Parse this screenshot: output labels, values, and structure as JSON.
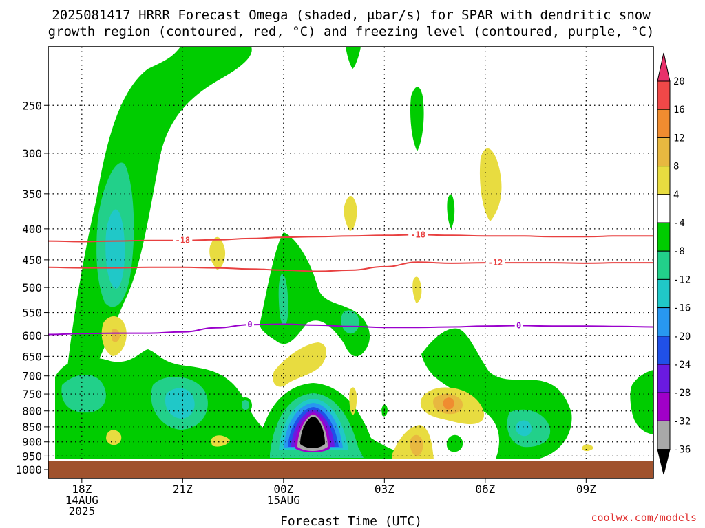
{
  "title_line1": "2025081417 HRRR Forecast Omega (shaded, μbar/s) for SPAR with dendritic snow",
  "title_line2": "growth region (contoured, red, °C) and freezing level (contoured, purple, °C)",
  "xlabel": "Forecast Time (UTC)",
  "credit": "coolwx.com/models",
  "colors": {
    "dendritic": "#e84040",
    "freezing": "#9a00cc",
    "ground": "#a0522d"
  },
  "chart_data": {
    "type": "heatmap",
    "title": "2025081417 HRRR Forecast Omega (shaded, μbar/s) for SPAR with dendritic snow growth region (contoured, red, °C) and freezing level (contoured, purple, °C)",
    "xlabel": "Forecast Time (UTC)",
    "ylabel": "",
    "x_start_hours": 17,
    "xlim_hours": [
      17,
      35
    ],
    "ylim_hPa": [
      200,
      1000
    ],
    "x_ticks": [
      {
        "hour": 18,
        "lines": [
          "18Z",
          "14AUG",
          "2025"
        ]
      },
      {
        "hour": 21,
        "lines": [
          "21Z"
        ]
      },
      {
        "hour": 24,
        "lines": [
          "00Z",
          "15AUG"
        ]
      },
      {
        "hour": 27,
        "lines": [
          "03Z"
        ]
      },
      {
        "hour": 30,
        "lines": [
          "06Z"
        ]
      },
      {
        "hour": 33,
        "lines": [
          "09Z"
        ]
      }
    ],
    "y_ticks": [
      250,
      300,
      350,
      400,
      450,
      500,
      550,
      600,
      650,
      700,
      750,
      800,
      850,
      900,
      950,
      1000
    ],
    "colorbar": {
      "labels": [
        "20",
        "16",
        "12",
        "8",
        "4",
        "-4",
        "-8",
        "-12",
        "-16",
        "-20",
        "-24",
        "-28",
        "-32",
        "-36"
      ],
      "colors": [
        "#e8306a",
        "#f04848",
        "#f08c30",
        "#e8b840",
        "#e8dc40",
        "#ffffff",
        "#00cc00",
        "#22d08a",
        "#20c8c8",
        "#2898f0",
        "#2050e8",
        "#6a1ae0",
        "#a000c8",
        "#a8a8a8",
        "#000000"
      ]
    },
    "contours": [
      {
        "name": "-18",
        "kind": "dendritic",
        "x": [
          17,
          18,
          19,
          20,
          21,
          22,
          23,
          24,
          25,
          26,
          27,
          28,
          29,
          30,
          31,
          32,
          33,
          34,
          35
        ],
        "y_hPa": [
          419,
          420,
          419,
          418,
          418,
          417,
          415,
          413,
          412,
          411,
          410,
          409,
          410,
          411,
          411,
          412,
          412,
          411,
          411
        ]
      },
      {
        "name": "-12",
        "kind": "dendritic",
        "x": [
          17,
          18,
          19,
          20,
          21,
          22,
          23,
          24,
          25,
          26,
          27,
          28,
          29,
          30,
          31,
          32,
          33,
          34,
          35
        ],
        "y_hPa": [
          463,
          464,
          464,
          463,
          463,
          464,
          466,
          468,
          470,
          468,
          462,
          454,
          456,
          455,
          455,
          455,
          456,
          455,
          455
        ]
      },
      {
        "name": "0",
        "kind": "freezing",
        "x": [
          17,
          18,
          19,
          20,
          21,
          22,
          23,
          24,
          25,
          26,
          27,
          28,
          29,
          30,
          31,
          32,
          33,
          34,
          35
        ],
        "y_hPa": [
          598,
          596,
          595,
          595,
          592,
          583,
          576,
          575,
          577,
          580,
          582,
          582,
          581,
          579,
          578,
          579,
          579,
          580,
          581
        ]
      }
    ],
    "omega_features": [
      {
        "level": -8,
        "x": 19,
        "y_hPa": 400
      },
      {
        "level": -12,
        "x": 19,
        "y_hPa": 420
      },
      {
        "level": -8,
        "x": 18.3,
        "y_hPa": 755
      },
      {
        "level": -12,
        "x": 21,
        "y_hPa": 790
      },
      {
        "level": -36,
        "x": 24.8,
        "y_hPa": 880
      },
      {
        "level": 8,
        "x": 29,
        "y_hPa": 795
      },
      {
        "level": 8,
        "x": 28,
        "y_hPa": 940
      },
      {
        "level": 4,
        "x": 31,
        "y_hPa": 345
      },
      {
        "level": -12,
        "x": 31.2,
        "y_hPa": 880
      }
    ]
  }
}
